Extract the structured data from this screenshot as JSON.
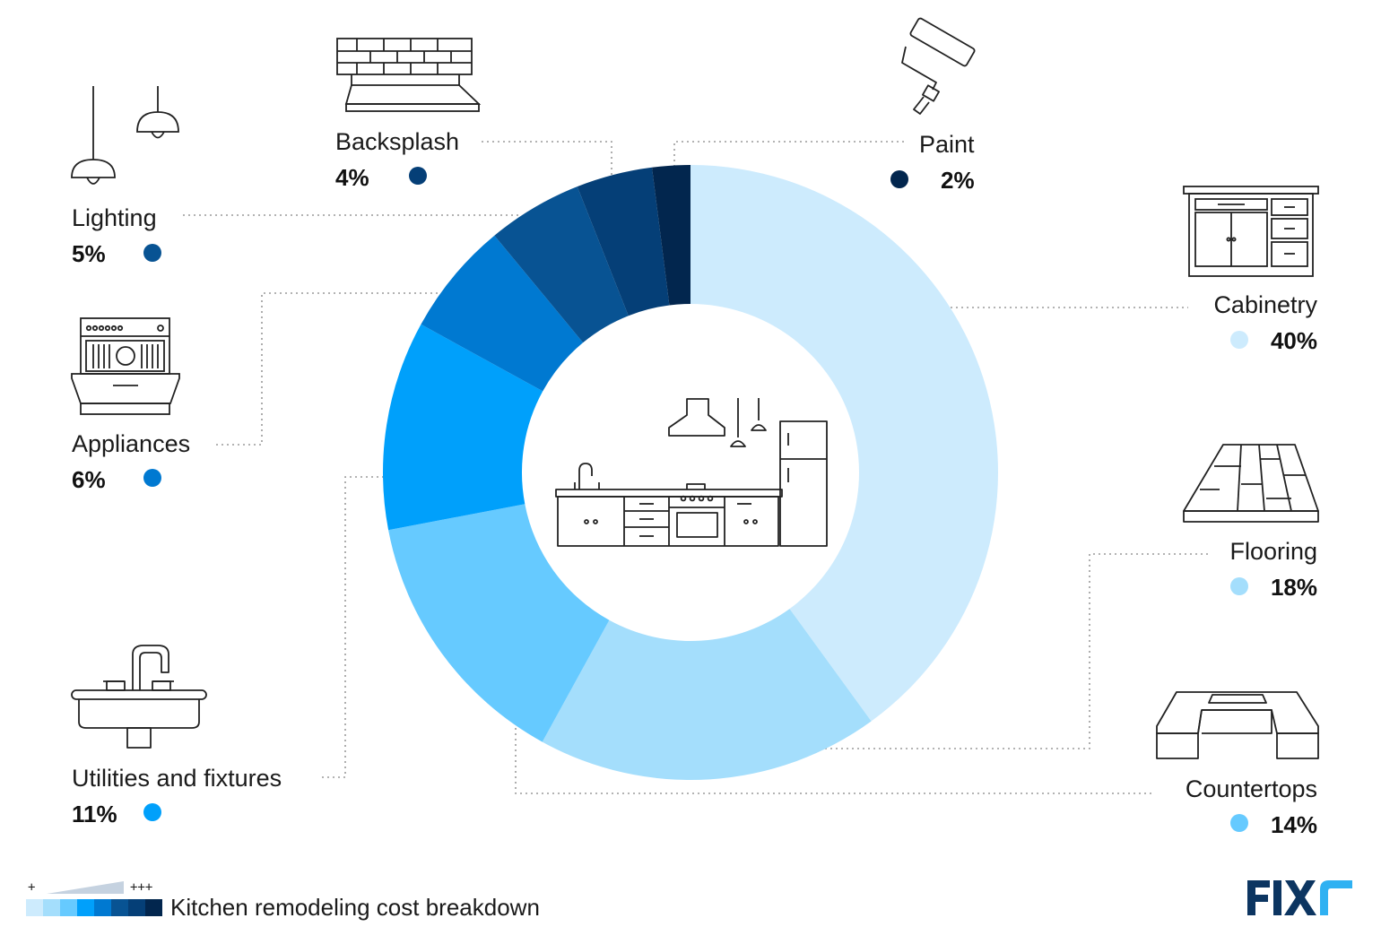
{
  "chart_data": {
    "type": "pie",
    "title": "Kitchen remodeling cost breakdown",
    "slices": [
      {
        "label": "Cabinetry",
        "value": 40,
        "pct_label": "40%",
        "color": "#cdebfd"
      },
      {
        "label": "Flooring",
        "value": 18,
        "pct_label": "18%",
        "color": "#a4defc"
      },
      {
        "label": "Countertops",
        "value": 14,
        "pct_label": "14%",
        "color": "#66caff"
      },
      {
        "label": "Utilities and fixtures",
        "value": 11,
        "pct_label": "11%",
        "color": "#00a0fb"
      },
      {
        "label": "Appliances",
        "value": 6,
        "pct_label": "6%",
        "color": "#0079d1"
      },
      {
        "label": "Lighting",
        "value": 5,
        "pct_label": "5%",
        "color": "#085393"
      },
      {
        "label": "Backsplash",
        "value": 4,
        "pct_label": "4%",
        "color": "#053f77"
      },
      {
        "label": "Paint",
        "value": 2,
        "pct_label": "2%",
        "color": "#02264e"
      }
    ]
  },
  "legend": {
    "title": "Kitchen remodeling cost breakdown",
    "low_marker": "+",
    "high_marker": "+++",
    "scale_colors": [
      "#cdebfd",
      "#a4defc",
      "#66caff",
      "#00a0fb",
      "#0079d1",
      "#085393",
      "#053f77",
      "#02264e"
    ]
  },
  "brand": {
    "logo_text": "FIXR",
    "color": "#0c3561",
    "accent": "#2fb1f2"
  },
  "icons": [
    "pendant-lights-icon",
    "brick-backsplash-icon",
    "paint-roller-icon",
    "cabinet-icon",
    "dishwasher-icon",
    "wood-flooring-icon",
    "sink-faucet-icon",
    "countertop-icon",
    "kitchen-icon"
  ]
}
